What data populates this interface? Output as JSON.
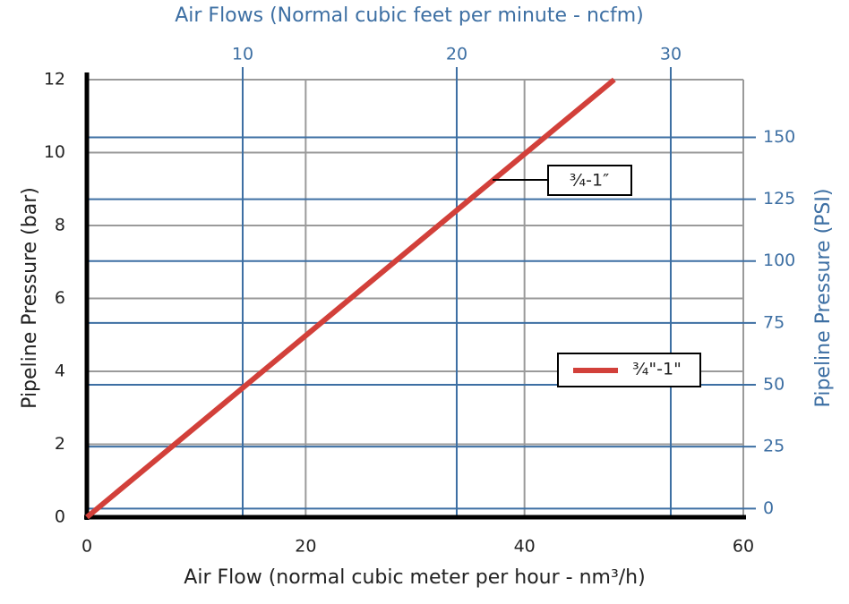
{
  "chart_data": {
    "type": "line",
    "title": "Air Flows (Normal cubic feet per minute - ncfm)",
    "xlabel": "Air Flow (normal cubic meter per hour - nm³/h)",
    "ylabel": "Pipeline Pressure (bar)",
    "y2label": "Pipeline Pressure (PSI)",
    "x": [
      0,
      48.2
    ],
    "series": [
      {
        "name": "¾\"-1\"",
        "color": "#d2403a",
        "values": [
          0,
          12
        ]
      }
    ],
    "annotation": "¾-1″",
    "xlim": [
      0,
      60
    ],
    "xticks": [
      0,
      20,
      40,
      60
    ],
    "ylim": [
      0,
      12
    ],
    "yticks": [
      0,
      2,
      4,
      6,
      8,
      10,
      12
    ],
    "x2lim": [
      2.72,
      33.39
    ],
    "x2ticks": [
      10,
      20,
      30
    ],
    "y2lim": [
      -3.5,
      173.3
    ],
    "y2ticks": [
      0,
      25,
      50,
      75,
      100,
      125,
      150
    ],
    "grid": true,
    "legend": "right"
  }
}
